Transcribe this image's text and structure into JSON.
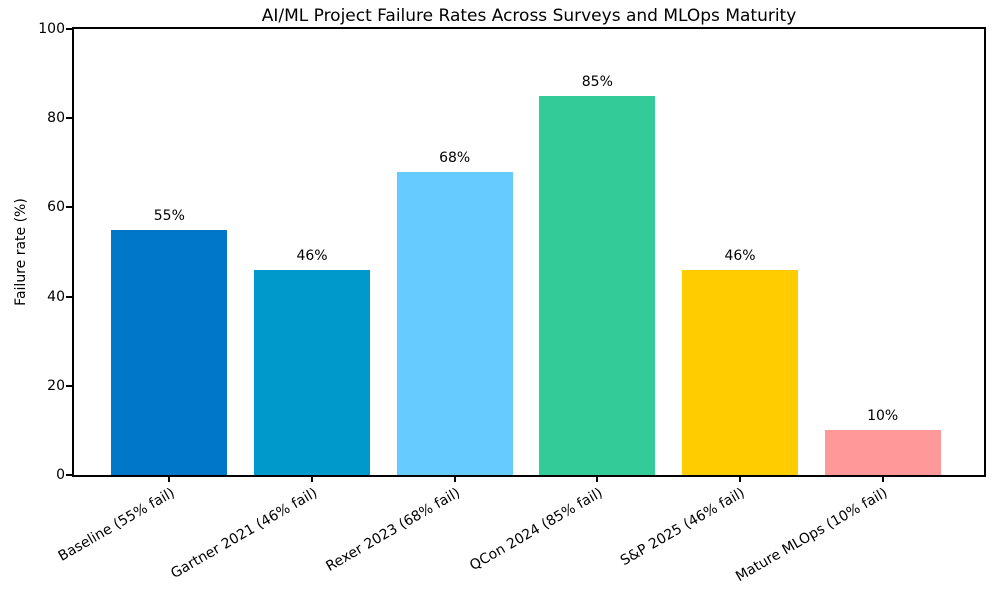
{
  "chart_data": {
    "type": "bar",
    "title": "AI/ML Project Failure Rates Across Surveys and MLOps Maturity",
    "ylabel": "Failure rate (%)",
    "xlabel": "",
    "categories": [
      "Baseline (55% fail)",
      "Gartner 2021 (46% fail)",
      "Rexer 2023 (68% fail)",
      "QCon 2024 (85% fail)",
      "S&P 2025 (46% fail)",
      "Mature MLOps (10% fail)"
    ],
    "values": [
      55,
      46,
      68,
      85,
      46,
      10
    ],
    "bar_labels": [
      "55%",
      "46%",
      "68%",
      "85%",
      "46%",
      "10%"
    ],
    "bar_colors": [
      "#0077C8",
      "#0099CC",
      "#66CCFF",
      "#33CC99",
      "#FFCC00",
      "#FF9999"
    ],
    "ylim": [
      0,
      100
    ],
    "yticks": [
      0,
      20,
      40,
      60,
      80,
      100
    ],
    "ytick_labels": [
      "0",
      "20",
      "40",
      "60",
      "80",
      "100"
    ],
    "x_tick_rotation_deg": 30,
    "grid": false,
    "legend": null,
    "background_color": "#FFFFFF",
    "spine_color": "#000000",
    "text_color": "#000000"
  }
}
